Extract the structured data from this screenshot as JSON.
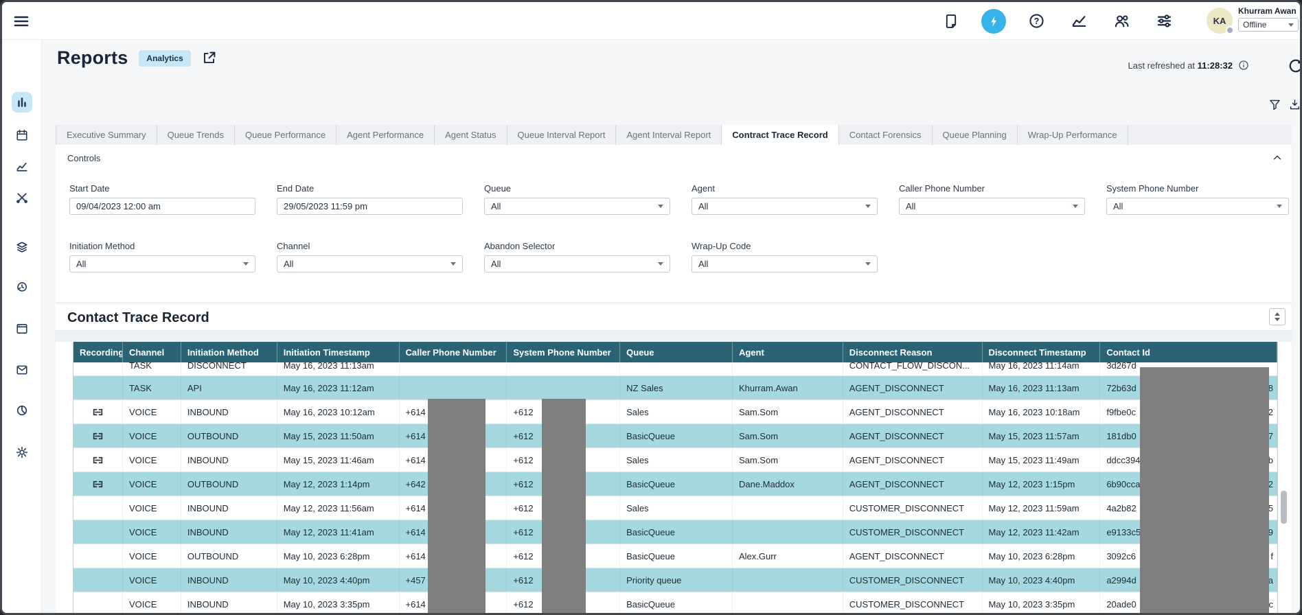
{
  "header": {
    "user_name": "Khurram Awan",
    "status_value": "Offline",
    "icons": [
      "note-icon",
      "bolt-icon",
      "help-icon",
      "line-chart-icon",
      "people-icon",
      "sliders-icon"
    ],
    "avatar_initials": "KA"
  },
  "sidebar": {
    "items": [
      {
        "icon": "bar-chart-icon",
        "active": true
      },
      {
        "icon": "calendar-icon",
        "active": false
      },
      {
        "icon": "trend-icon",
        "active": false
      },
      {
        "icon": "tools-icon",
        "active": false
      },
      {
        "icon": "layers-icon",
        "active": false
      },
      {
        "icon": "history-icon",
        "active": false
      },
      {
        "icon": "window-icon",
        "active": false
      },
      {
        "icon": "mail-icon",
        "active": false
      },
      {
        "icon": "pie-chart-icon",
        "active": false
      },
      {
        "icon": "gear-icon",
        "active": false
      }
    ]
  },
  "page": {
    "title": "Reports",
    "badge": "Analytics",
    "last_refreshed_label": "Last refreshed at",
    "last_refreshed_time": "11:28:32"
  },
  "tabs": [
    {
      "label": "Executive Summary",
      "active": false
    },
    {
      "label": "Queue Trends",
      "active": false
    },
    {
      "label": "Queue Performance",
      "active": false
    },
    {
      "label": "Agent Performance",
      "active": false
    },
    {
      "label": "Agent Status",
      "active": false
    },
    {
      "label": "Queue Interval Report",
      "active": false
    },
    {
      "label": "Agent Interval Report",
      "active": false
    },
    {
      "label": "Contract Trace Record",
      "active": true
    },
    {
      "label": "Contact Forensics",
      "active": false
    },
    {
      "label": "Queue Planning",
      "active": false
    },
    {
      "label": "Wrap-Up Performance",
      "active": false
    }
  ],
  "controls": {
    "title": "Controls",
    "row1": [
      {
        "label": "Start Date",
        "value": "09/04/2023 12:00 am",
        "type": "text"
      },
      {
        "label": "End Date",
        "value": "29/05/2023 11:59 pm",
        "type": "text"
      },
      {
        "label": "Queue",
        "value": "All",
        "type": "select"
      },
      {
        "label": "Agent",
        "value": "All",
        "type": "select"
      },
      {
        "label": "Caller Phone Number",
        "value": "All",
        "type": "select"
      },
      {
        "label": "System Phone Number",
        "value": "All",
        "type": "select"
      }
    ],
    "row2": [
      {
        "label": "Initiation Method",
        "value": "All",
        "type": "select"
      },
      {
        "label": "Channel",
        "value": "All",
        "type": "select"
      },
      {
        "label": "Abandon Selector",
        "value": "All",
        "type": "select"
      },
      {
        "label": "Wrap-Up Code",
        "value": "All",
        "type": "select"
      }
    ]
  },
  "table": {
    "title": "Contact Trace Record",
    "columns": [
      "Recording",
      "Channel",
      "Initiation Method",
      "Initiation Timestamp",
      "Caller Phone Number",
      "System Phone Number",
      "Queue",
      "Agent",
      "Disconnect Reason",
      "Disconnect Timestamp",
      "Contact Id"
    ],
    "rows": [
      {
        "partial": true,
        "shade": "white",
        "recording": false,
        "channel": "TASK",
        "method": "DISCONNECT",
        "ts": "May 16, 2023 11:13am",
        "caller": "",
        "system": "",
        "queue": "",
        "agent": "",
        "reason": "CONTACT_FLOW_DISCON...",
        "dts": "May 16, 2023 11:14am",
        "cid": "3d267d",
        "cid_end": ""
      },
      {
        "partial": false,
        "shade": "blue",
        "recording": false,
        "channel": "TASK",
        "method": "API",
        "ts": "May 16, 2023 11:12am",
        "caller": "",
        "system": "",
        "queue": "NZ Sales",
        "agent": "Khurram.Awan",
        "reason": "AGENT_DISCONNECT",
        "dts": "May 16, 2023 11:13am",
        "cid": "72b63d",
        "cid_end": "8"
      },
      {
        "partial": false,
        "shade": "white",
        "recording": true,
        "channel": "VOICE",
        "method": "INBOUND",
        "ts": "May 16, 2023 10:12am",
        "caller": "+614",
        "system": "+612",
        "queue": "Sales",
        "agent": "Sam.Som",
        "reason": "AGENT_DISCONNECT",
        "dts": "May 16, 2023 10:18am",
        "cid": "f9fbe0c",
        "cid_end": "2"
      },
      {
        "partial": false,
        "shade": "blue",
        "recording": true,
        "channel": "VOICE",
        "method": "OUTBOUND",
        "ts": "May 15, 2023 11:50am",
        "caller": "+614",
        "system": "+612",
        "queue": "BasicQueue",
        "agent": "Sam.Som",
        "reason": "AGENT_DISCONNECT",
        "dts": "May 15, 2023 11:57am",
        "cid": "181db0",
        "cid_end": "7"
      },
      {
        "partial": false,
        "shade": "white",
        "recording": true,
        "channel": "VOICE",
        "method": "INBOUND",
        "ts": "May 15, 2023 11:46am",
        "caller": "+614",
        "system": "+612",
        "queue": "Sales",
        "agent": "Sam.Som",
        "reason": "AGENT_DISCONNECT",
        "dts": "May 15, 2023 11:49am",
        "cid": "ddcc394",
        "cid_end": "b"
      },
      {
        "partial": false,
        "shade": "blue",
        "recording": true,
        "channel": "VOICE",
        "method": "OUTBOUND",
        "ts": "May 12, 2023 1:14pm",
        "caller": "+642",
        "system": "+612",
        "queue": "BasicQueue",
        "agent": "Dane.Maddox",
        "reason": "AGENT_DISCONNECT",
        "dts": "May 12, 2023 1:15pm",
        "cid": "6b90cca",
        "cid_end": "2"
      },
      {
        "partial": false,
        "shade": "white",
        "recording": false,
        "channel": "VOICE",
        "method": "INBOUND",
        "ts": "May 12, 2023 11:56am",
        "caller": "+614",
        "system": "+612",
        "queue": "Sales",
        "agent": "",
        "reason": "CUSTOMER_DISCONNECT",
        "dts": "May 12, 2023 11:59am",
        "cid": "4a2b82",
        "cid_end": "5"
      },
      {
        "partial": false,
        "shade": "blue",
        "recording": false,
        "channel": "VOICE",
        "method": "INBOUND",
        "ts": "May 12, 2023 11:41am",
        "caller": "+614",
        "system": "+612",
        "queue": "BasicQueue",
        "agent": "",
        "reason": "CUSTOMER_DISCONNECT",
        "dts": "May 12, 2023 11:42am",
        "cid": "e9133c5",
        "cid_end": "9"
      },
      {
        "partial": false,
        "shade": "white",
        "recording": false,
        "channel": "VOICE",
        "method": "OUTBOUND",
        "ts": "May 10, 2023 6:28pm",
        "caller": "+614",
        "system": "+612",
        "queue": "BasicQueue",
        "agent": "Alex.Gurr",
        "reason": "AGENT_DISCONNECT",
        "dts": "May 10, 2023 6:28pm",
        "cid": "3092c6",
        "cid_end": "f"
      },
      {
        "partial": false,
        "shade": "blue",
        "recording": false,
        "channel": "VOICE",
        "method": "INBOUND",
        "ts": "May 10, 2023 4:40pm",
        "caller": "+457",
        "system": "+612",
        "queue": "Priority queue",
        "agent": "",
        "reason": "CUSTOMER_DISCONNECT",
        "dts": "May 10, 2023 4:40pm",
        "cid": "a2994d",
        "cid_end": "a"
      },
      {
        "partial": false,
        "shade": "white",
        "recording": false,
        "channel": "VOICE",
        "method": "INBOUND",
        "ts": "May 10, 2023 3:35pm",
        "caller": "+614",
        "system": "+612",
        "queue": "BasicQueue",
        "agent": "",
        "reason": "CUSTOMER_DISCONNECT",
        "dts": "May 10, 2023 3:35pm",
        "cid": "20ade0",
        "cid_end": "c"
      }
    ]
  },
  "colors": {
    "accent_blue": "#36b3e8",
    "badge_bg": "#c5e7f8",
    "table_header": "#2b6375",
    "row_alt_blue": "#a6d8e0",
    "redaction_gray": "#7f7f7f",
    "navy_text": "#19243d"
  }
}
